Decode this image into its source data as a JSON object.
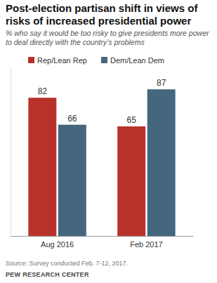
{
  "chart_data": {
    "type": "bar",
    "title": "Post-election partisan shift in views of risks of increased presidential power",
    "subtitle": "% who say it would be too risky to give presidents more power to deal directly with the country’s problems",
    "categories": [
      "Aug 2016",
      "Feb 2017"
    ],
    "series": [
      {
        "name": "Rep/Lean Rep",
        "color": "#b8322c",
        "values": [
          82,
          65
        ]
      },
      {
        "name": "Dem/Lean Dem",
        "color": "#44677f",
        "values": [
          66,
          87
        ]
      }
    ],
    "ylim": [
      0,
      100
    ],
    "data_labels": true,
    "tick_labels": "x",
    "legend": "top",
    "source": "Source: Survey conducted Feb. 7-12, 2017.",
    "credit": "PEW RESEARCH CENTER"
  }
}
